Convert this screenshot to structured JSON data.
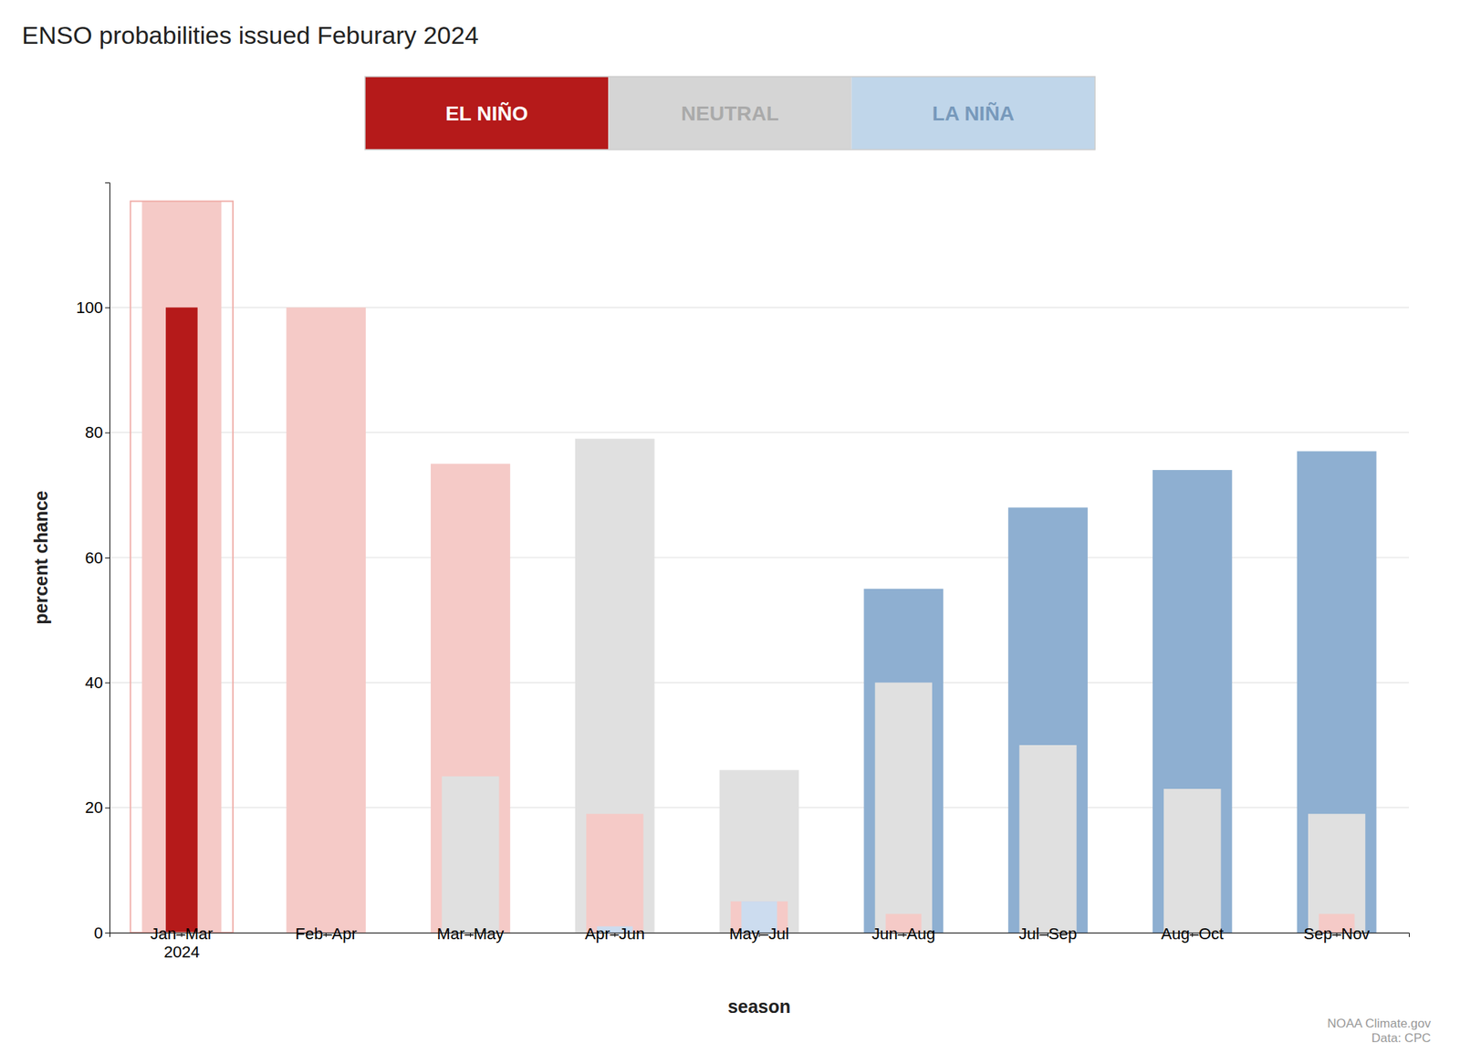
{
  "chart_data": {
    "type": "bar",
    "title": "ENSO probabilities issued Feburary 2024",
    "xlabel": "season",
    "ylabel": "percent chance",
    "categories": [
      "Jan–Mar\n2024",
      "Feb–Apr",
      "Mar–May",
      "Apr–Jun",
      "May–Jul",
      "Jun–Aug",
      "Jul–Sep",
      "Aug–Oct",
      "Sep–Nov"
    ],
    "series": [
      {
        "name": "EL NIÑO",
        "colors": [
          "#b51a1a",
          "#f5cac7",
          "#f5cac7",
          "#f5cac7",
          "#f5cac7",
          "#f5cac7",
          "#f5cac7",
          "#f5cac7",
          "#f5cac7"
        ],
        "legend_color": "#b51a1a",
        "legend_text_color": "#ffffff",
        "values": [
          100,
          100,
          75,
          19,
          5,
          3,
          0,
          0,
          3
        ]
      },
      {
        "name": "NEUTRAL",
        "color": "#e0e0e0",
        "legend_color": "#d5d5d5",
        "legend_text_color": "#aaaaaa",
        "values": [
          0,
          0,
          25,
          79,
          26,
          40,
          30,
          23,
          19
        ]
      },
      {
        "name": "LA NIÑA",
        "colors": [
          "#ccdcef",
          "#ccdcef",
          "#ccdcef",
          "#ccdcef",
          "#ccdcef",
          "#8eafd1",
          "#8eafd1",
          "#8eafd1",
          "#8eafd1"
        ],
        "legend_color": "#c0d6ea",
        "legend_text_color": "#7799bb",
        "values": [
          0,
          0,
          0,
          1,
          5,
          55,
          68,
          74,
          77
        ]
      }
    ],
    "highlight": {
      "category": "Jan–Mar\n2024",
      "value": 117,
      "color": "#f5cac7",
      "edge_color": "#f0b0ab"
    },
    "ylim": [
      0,
      120
    ],
    "yticks": [
      0,
      20,
      40,
      60,
      80,
      100
    ],
    "grid": true,
    "legend": "top",
    "annotations": [
      {
        "text": "NOAA Climate.gov\nData: CPC"
      }
    ]
  }
}
